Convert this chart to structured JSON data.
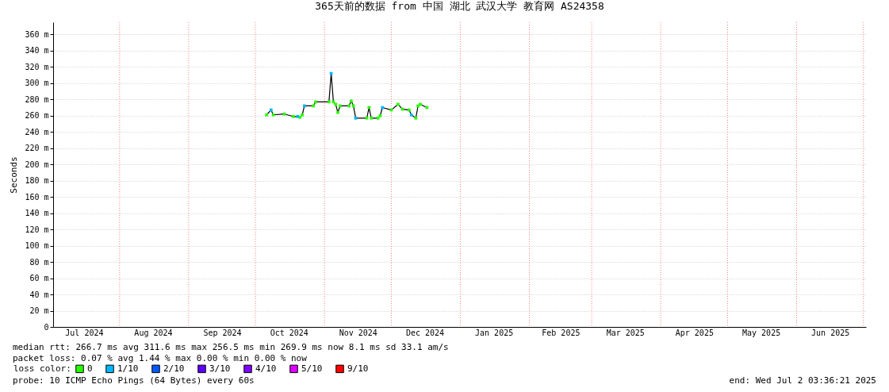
{
  "chart_data": {
    "type": "line",
    "title": "365天前的数据 from 中国 湖北 武汉大学 教育网 AS24358",
    "ylabel": "Seconds",
    "x": [
      "2024-10-06",
      "2024-10-08",
      "2024-10-09",
      "2024-10-14",
      "2024-10-18",
      "2024-10-20",
      "2024-10-21",
      "2024-10-22",
      "2024-10-23",
      "2024-10-27",
      "2024-10-28",
      "2024-11-03",
      "2024-11-04",
      "2024-11-05",
      "2024-11-06",
      "2024-11-07",
      "2024-11-08",
      "2024-11-12",
      "2024-11-13",
      "2024-11-14",
      "2024-11-15",
      "2024-11-20",
      "2024-11-21",
      "2024-11-22",
      "2024-11-25",
      "2024-11-26",
      "2024-11-27",
      "2024-12-01",
      "2024-12-04",
      "2024-12-06",
      "2024-12-09",
      "2024-12-10",
      "2024-12-12",
      "2024-12-13",
      "2024-12-14",
      "2024-12-17"
    ],
    "series": [
      {
        "color": "#000000",
        "marker": "none",
        "values": [
          261,
          267,
          261,
          262,
          259,
          259,
          258,
          261,
          272,
          272,
          277,
          277,
          312,
          277,
          274,
          264,
          272,
          272,
          278,
          272,
          257,
          257,
          270,
          257,
          257,
          260,
          270,
          267,
          274,
          268,
          267,
          261,
          257,
          272,
          274,
          270
        ]
      },
      {
        "type": "scatter",
        "name": "0",
        "color": "#26ff00",
        "values": [
          261,
          null,
          261,
          262,
          259,
          null,
          258,
          261,
          null,
          272,
          277,
          277,
          null,
          277,
          274,
          264,
          272,
          272,
          278,
          272,
          null,
          257,
          270,
          257,
          257,
          260,
          null,
          267,
          274,
          268,
          267,
          null,
          257,
          272,
          274,
          270
        ]
      },
      {
        "type": "scatter",
        "name": "1/10",
        "color": "#00b8ff",
        "values": [
          null,
          267,
          null,
          null,
          null,
          259,
          null,
          null,
          272,
          null,
          null,
          null,
          312,
          null,
          null,
          null,
          null,
          null,
          null,
          null,
          257,
          null,
          null,
          null,
          null,
          null,
          270,
          null,
          null,
          null,
          null,
          261,
          null,
          null,
          null,
          null
        ]
      },
      {
        "type": "scatter",
        "name": "2/10",
        "color": "#0059ff",
        "values": [
          null,
          null,
          null,
          null,
          null,
          null,
          null,
          null,
          null,
          null,
          null,
          null,
          null,
          null,
          null,
          null,
          null,
          null,
          null,
          null,
          null,
          null,
          null,
          null,
          null,
          null,
          null,
          null,
          null,
          null,
          null,
          null,
          null,
          null,
          null,
          null
        ]
      },
      {
        "type": "scatter",
        "name": "3/10",
        "color": "#5e00ff",
        "values": [
          null,
          null,
          null,
          null,
          null,
          null,
          null,
          null,
          null,
          null,
          null,
          null,
          null,
          null,
          null,
          null,
          null,
          null,
          null,
          null,
          null,
          null,
          null,
          null,
          null,
          null,
          null,
          null,
          null,
          null,
          null,
          null,
          null,
          null,
          null,
          null
        ]
      },
      {
        "type": "scatter",
        "name": "4/10",
        "color": "#7e00ff",
        "values": [
          null,
          null,
          null,
          null,
          null,
          null,
          null,
          null,
          null,
          null,
          null,
          null,
          null,
          null,
          null,
          null,
          null,
          null,
          null,
          null,
          null,
          null,
          null,
          null,
          null,
          null,
          null,
          null,
          null,
          null,
          null,
          null,
          null,
          null,
          null,
          null
        ]
      },
      {
        "type": "scatter",
        "name": "5/10",
        "color": "#dd00ff",
        "values": [
          null,
          null,
          null,
          null,
          null,
          null,
          null,
          null,
          null,
          null,
          null,
          null,
          null,
          null,
          null,
          null,
          null,
          null,
          null,
          null,
          null,
          null,
          null,
          null,
          null,
          null,
          null,
          null,
          null,
          null,
          null,
          null,
          null,
          null,
          null,
          null
        ]
      },
      {
        "type": "scatter",
        "name": "9/10",
        "color": "#ff0000",
        "values": [
          null,
          null,
          null,
          null,
          null,
          null,
          null,
          null,
          null,
          null,
          null,
          null,
          null,
          null,
          null,
          null,
          null,
          null,
          null,
          null,
          null,
          null,
          null,
          null,
          null,
          null,
          null,
          null,
          null,
          null,
          null,
          null,
          null,
          null,
          null,
          null
        ]
      }
    ],
    "legend_title": "loss color:",
    "legend": "bottom left",
    "marker": "square",
    "line_style": "solid",
    "grid": true,
    "xlim": [
      "2024-07-02T03:36",
      "2025-07-02T03:36"
    ],
    "xticks": [
      {
        "value": "2024-07-16",
        "label": "Jul 2024"
      },
      {
        "value": "2024-08-01",
        "label": null
      },
      {
        "value": "2024-08-16",
        "label": "Aug 2024"
      },
      {
        "value": "2024-09-01",
        "label": null
      },
      {
        "value": "2024-09-16",
        "label": "Sep 2024"
      },
      {
        "value": "2024-10-01",
        "label": null
      },
      {
        "value": "2024-10-16",
        "label": "Oct 2024"
      },
      {
        "value": "2024-11-01",
        "label": null
      },
      {
        "value": "2024-11-16",
        "label": "Nov 2024"
      },
      {
        "value": "2024-12-01",
        "label": null
      },
      {
        "value": "2024-12-16",
        "label": "Dec 2024"
      },
      {
        "value": "2025-01-01",
        "label": null
      },
      {
        "value": "2025-01-16",
        "label": "Jan 2025"
      },
      {
        "value": "2025-02-01",
        "label": null
      },
      {
        "value": "2025-02-15",
        "label": "Feb 2025"
      },
      {
        "value": "2025-03-01",
        "label": null
      },
      {
        "value": "2025-03-16",
        "label": "Mar 2025"
      },
      {
        "value": "2025-04-01",
        "label": null
      },
      {
        "value": "2025-04-16",
        "label": "Apr 2025"
      },
      {
        "value": "2025-05-01",
        "label": null
      },
      {
        "value": "2025-05-16",
        "label": "May 2025"
      },
      {
        "value": "2025-06-01",
        "label": null
      },
      {
        "value": "2025-06-16",
        "label": "Jun 2025"
      },
      {
        "value": "2025-07-01",
        "label": null
      }
    ],
    "ylim": [
      0,
      375
    ],
    "yticks": [
      0,
      {
        "value": 20,
        "label": "20 m"
      },
      {
        "value": 40,
        "label": "40 m"
      },
      {
        "value": 60,
        "label": "60 m"
      },
      {
        "value": 80,
        "label": "80 m"
      },
      {
        "value": 100,
        "label": "100 m"
      },
      {
        "value": 120,
        "label": "120 m"
      },
      {
        "value": 140,
        "label": "140 m"
      },
      {
        "value": 160,
        "label": "160 m"
      },
      {
        "value": 180,
        "label": "180 m"
      },
      {
        "value": 200,
        "label": "200 m"
      },
      {
        "value": 220,
        "label": "220 m"
      },
      {
        "value": 240,
        "label": "240 m"
      },
      {
        "value": 260,
        "label": "260 m"
      },
      {
        "value": 280,
        "label": "280 m"
      },
      {
        "value": 300,
        "label": "300 m"
      },
      {
        "value": 320,
        "label": "320 m"
      },
      {
        "value": 340,
        "label": "340 m"
      },
      {
        "value": 360,
        "label": "360 m"
      }
    ],
    "annotations": [
      "median rtt:  266.7 ms avg  311.6 ms max  256.5 ms min  269.9 ms now  8.1 ms sd  33.1   am/s",
      "packet loss: 0.07 % avg  1.44 % max  0.00 % min  0.00 % now",
      "probe:       10 ICMP Echo Pings (64 Bytes) every 60s",
      "end: Wed Jul  2 03:36:21 2025"
    ]
  }
}
